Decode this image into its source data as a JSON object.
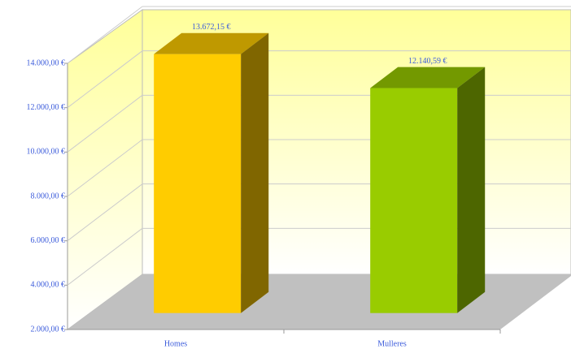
{
  "chart_data": {
    "type": "bar3d",
    "categories": [
      "Homes",
      "Mulleres"
    ],
    "values": [
      13672.15,
      12140.59
    ],
    "value_labels": [
      "13.672,15 €",
      "12.140,59 €"
    ],
    "colors": [
      "#ffcc00",
      "#99cc00"
    ],
    "ylim": [
      2000,
      14000
    ],
    "yticks": [
      {
        "value": 2000,
        "label": "2.000,00 €"
      },
      {
        "value": 4000,
        "label": "4.000,00 €"
      },
      {
        "value": 6000,
        "label": "6.000,00 €"
      },
      {
        "value": 8000,
        "label": "8.000,00 €"
      },
      {
        "value": 10000,
        "label": "10.000,00 €"
      },
      {
        "value": 12000,
        "label": "12.000,00 €"
      },
      {
        "value": 14000,
        "label": "14.000,00 €"
      }
    ],
    "grid": true
  }
}
